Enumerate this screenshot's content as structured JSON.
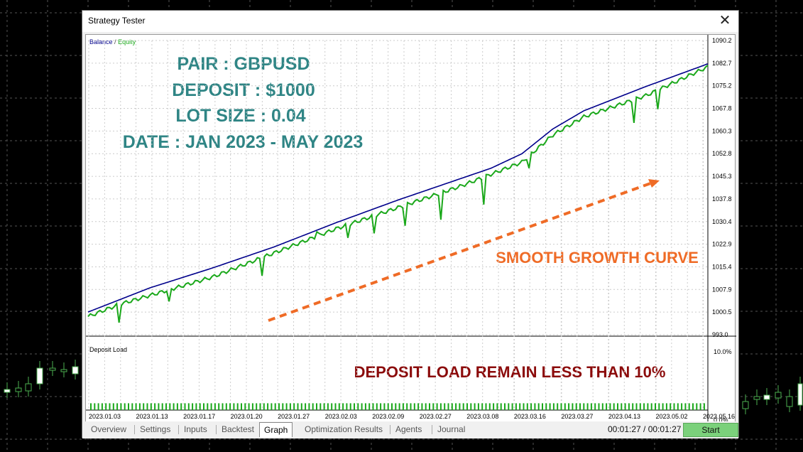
{
  "window": {
    "title": "Strategy Tester"
  },
  "overlay": {
    "lines": [
      "PAIR : GBPUSD",
      "DEPOSIT : $1000",
      "LOT SIZE : 0.04",
      "DATE : JAN 2023 - MAY 2023"
    ],
    "growth_text": "SMOOTH GROWTH CURVE",
    "deposit_text": "DEPOSIT LOAD REMAIN LESS THAN 10%",
    "colors": {
      "info": "#2f8585",
      "growth": "#ef6b26",
      "deposit": "#8b0a0a"
    }
  },
  "legend": {
    "balance": "Balance",
    "slash": "/",
    "equity": "Equity",
    "balance_color": "#00008b",
    "equity_color": "#1aa81a"
  },
  "deposit_panel": {
    "label": "Deposit Load",
    "ytick_top": "10.0%",
    "ytick_bottom": "0.0%"
  },
  "chart_data": {
    "type": "line",
    "y_ticks": [
      "1090.2",
      "1082.7",
      "1075.2",
      "1067.8",
      "1060.3",
      "1052.8",
      "1045.3",
      "1037.8",
      "1030.4",
      "1022.9",
      "1015.4",
      "1007.9",
      "1000.5",
      "993.0"
    ],
    "ylim": [
      993.0,
      1090.2
    ],
    "x_ticks": [
      "2023.01.03",
      "2023.01.13",
      "2023.01.17",
      "2023.01.20",
      "2023.01.27",
      "2023.02.03",
      "2023.02.09",
      "2023.02.27",
      "2023.03.08",
      "2023.03.16",
      "2023.03.27",
      "2023.04.13",
      "2023.05.02",
      "2023.05.16"
    ],
    "series": [
      {
        "name": "Balance",
        "color": "#00008b",
        "x": [
          0,
          0.05,
          0.1,
          0.2,
          0.3,
          0.4,
          0.5,
          0.6,
          0.65,
          0.7,
          0.75,
          0.8,
          0.9,
          1.0
        ],
        "values": [
          1000.5,
          1004.5,
          1008.5,
          1015.0,
          1022.0,
          1030.0,
          1037.5,
          1044.5,
          1048.0,
          1052.8,
          1061.0,
          1067.0,
          1075.0,
          1082.5
        ]
      },
      {
        "name": "Equity",
        "color": "#1aa81a",
        "x": [
          0,
          0.05,
          0.1,
          0.2,
          0.3,
          0.4,
          0.5,
          0.6,
          0.65,
          0.7,
          0.75,
          0.8,
          0.9,
          1.0
        ],
        "values": [
          999.0,
          1003.0,
          1006.0,
          1012.0,
          1020.0,
          1028.0,
          1035.0,
          1042.0,
          1046.0,
          1050.0,
          1059.0,
          1065.0,
          1072.0,
          1081.5
        ],
        "drawdown_spikes": [
          {
            "x": 0.05,
            "y": 997.0
          },
          {
            "x": 0.13,
            "y": 1004.0
          },
          {
            "x": 0.28,
            "y": 1012.5
          },
          {
            "x": 0.37,
            "y": 1027.0
          },
          {
            "x": 0.42,
            "y": 1025.0
          },
          {
            "x": 0.46,
            "y": 1026.5
          },
          {
            "x": 0.51,
            "y": 1029.0
          },
          {
            "x": 0.57,
            "y": 1031.0
          },
          {
            "x": 0.64,
            "y": 1036.0
          },
          {
            "x": 0.71,
            "y": 1048.0
          },
          {
            "x": 0.88,
            "y": 1063.0
          },
          {
            "x": 0.92,
            "y": 1067.5
          }
        ]
      }
    ],
    "deposit_load": {
      "max_percent": 10.0,
      "bars_level_percent": 1.0
    }
  },
  "tabs": [
    "Overview",
    "Settings",
    "Inputs",
    "Backtest",
    "Graph",
    "Optimization Results",
    "Agents",
    "Journal"
  ],
  "active_tab": "Graph",
  "timer": "00:01:27 / 00:01:27",
  "start_label": "Start"
}
